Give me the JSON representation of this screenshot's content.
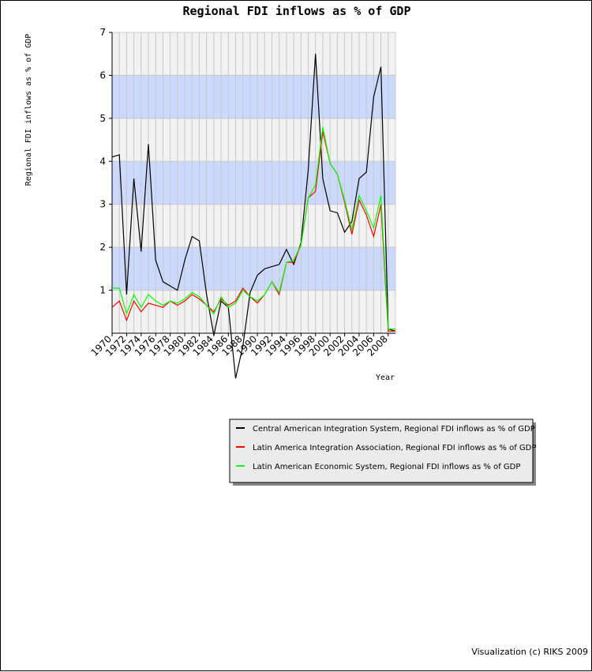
{
  "chart_data": {
    "type": "line",
    "title": "Regional FDI inflows as % of GDP",
    "ylabel": "Regional FDI inflows as % of GDP",
    "xlabel": "Year",
    "ylim": [
      0,
      7
    ],
    "xlim": [
      1970,
      2009
    ],
    "y_ticks": [
      1,
      2,
      3,
      4,
      5,
      6,
      7
    ],
    "x_ticks": [
      1970,
      1972,
      1974,
      1976,
      1978,
      1980,
      1982,
      1984,
      1986,
      1988,
      1990,
      1992,
      1994,
      1996,
      1998,
      2000,
      2002,
      2004,
      2006,
      2008
    ],
    "grid": true,
    "banded_y": true,
    "band_color": "#ccd9ff",
    "plot_background": "#f2f2f2",
    "legend_position": "bottom-right",
    "x": [
      1970,
      1971,
      1972,
      1973,
      1974,
      1975,
      1976,
      1977,
      1978,
      1979,
      1980,
      1981,
      1982,
      1983,
      1984,
      1985,
      1986,
      1987,
      1988,
      1989,
      1990,
      1991,
      1992,
      1993,
      1994,
      1995,
      1996,
      1997,
      1998,
      1999,
      2000,
      2001,
      2002,
      2003,
      2004,
      2005,
      2006,
      2007,
      2008,
      2009
    ],
    "series": [
      {
        "name": "Central American Integration System, Regional FDI inflows as % of GDP",
        "color": "#000000",
        "values": [
          4.1,
          4.15,
          0.9,
          3.6,
          1.9,
          4.4,
          1.7,
          1.2,
          1.1,
          1.0,
          1.7,
          2.25,
          2.15,
          0.9,
          -0.05,
          0.75,
          0.6,
          -1.05,
          -0.3,
          0.95,
          1.35,
          1.5,
          1.55,
          1.6,
          1.95,
          1.6,
          2.1,
          3.8,
          6.5,
          3.6,
          2.85,
          2.8,
          2.35,
          2.6,
          3.6,
          3.75,
          5.5,
          6.2,
          0.1,
          0.05
        ]
      },
      {
        "name": "Latin America Integration Association, Regional FDI inflows as % of GDP",
        "color": "#ff0000",
        "values": [
          0.6,
          0.75,
          0.3,
          0.75,
          0.5,
          0.7,
          0.65,
          0.6,
          0.75,
          0.65,
          0.75,
          0.9,
          0.8,
          0.65,
          0.5,
          0.8,
          0.65,
          0.75,
          1.05,
          0.85,
          0.7,
          0.9,
          1.2,
          0.9,
          1.65,
          1.65,
          2.05,
          3.15,
          3.3,
          4.7,
          3.95,
          3.7,
          3.05,
          2.3,
          3.1,
          2.75,
          2.25,
          3.0,
          0.05,
          0.05
        ]
      },
      {
        "name": "Latin American Economic System, Regional FDI inflows as % of GDP",
        "color": "#00ff00",
        "values": [
          1.05,
          1.05,
          0.45,
          0.9,
          0.6,
          0.9,
          0.75,
          0.65,
          0.75,
          0.7,
          0.8,
          0.95,
          0.85,
          0.65,
          0.45,
          0.85,
          0.6,
          0.7,
          1.0,
          0.85,
          0.75,
          0.9,
          1.2,
          0.95,
          1.65,
          1.7,
          2.05,
          3.15,
          3.45,
          4.8,
          3.95,
          3.7,
          3.1,
          2.4,
          3.2,
          2.85,
          2.45,
          3.2,
          0.1,
          0.1
        ]
      }
    ]
  },
  "credit": "Visualization (c) RIKS 2009"
}
